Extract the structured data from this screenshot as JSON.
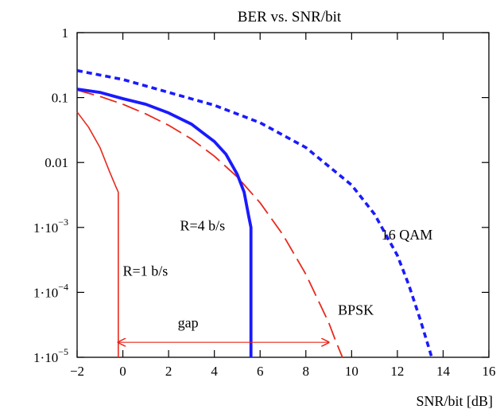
{
  "chart_data": {
    "type": "line",
    "title": "BER vs. SNR/bit",
    "xlabel": "SNR/bit [dB]",
    "ylabel": "",
    "xlim": [
      -2,
      16
    ],
    "ylim": [
      1e-05,
      1
    ],
    "y_scale": "log",
    "grid": false,
    "x_ticks": [
      "−2",
      "0",
      "2",
      "4",
      "6",
      "8",
      "10",
      "12",
      "14",
      "16"
    ],
    "y_ticks": [
      {
        "value": 1,
        "label": "1",
        "exp": ""
      },
      {
        "value": 0.1,
        "label": "0.1",
        "exp": ""
      },
      {
        "value": 0.01,
        "label": "0.01",
        "exp": ""
      },
      {
        "value": 0.001,
        "label": "1·10",
        "exp": "−3"
      },
      {
        "value": 0.0001,
        "label": "1·10",
        "exp": "−4"
      },
      {
        "value": 1e-05,
        "label": "1·10",
        "exp": "−5"
      }
    ],
    "series": [
      {
        "name": "16 QAM",
        "color": "#1a1aff",
        "style": "dotted-thick",
        "x": [
          -2,
          0,
          2,
          4,
          6,
          8,
          10,
          11,
          12,
          12.5,
          13,
          13.5
        ],
        "y": [
          0.26,
          0.19,
          0.12,
          0.076,
          0.041,
          0.017,
          0.0045,
          0.0016,
          0.00037,
          0.00013,
          3.8e-05,
          1e-05
        ]
      },
      {
        "name": "BPSK",
        "color": "#e8291c",
        "style": "dashed",
        "x": [
          -2,
          -1,
          0,
          1,
          2,
          3,
          4,
          5,
          6,
          7,
          8,
          9,
          9.3,
          9.6
        ],
        "y": [
          0.13,
          0.104,
          0.079,
          0.056,
          0.0375,
          0.023,
          0.0125,
          0.006,
          0.0024,
          0.00077,
          0.00019,
          3.4e-05,
          1.8e-05,
          1e-05
        ]
      },
      {
        "name": "R=4 b/s",
        "color": "#1a1aff",
        "style": "solid-thick",
        "x": [
          -2,
          -1,
          0,
          1,
          2,
          3,
          4,
          4.5,
          5,
          5.3,
          5.5,
          5.6,
          5.6
        ],
        "y": [
          0.135,
          0.12,
          0.096,
          0.079,
          0.058,
          0.039,
          0.021,
          0.0135,
          0.0066,
          0.0035,
          0.0015,
          0.001,
          1e-05
        ]
      },
      {
        "name": "R=1 b/s",
        "color": "#e8291c",
        "style": "solid",
        "x": [
          -2,
          -1.5,
          -1,
          -0.6,
          -0.3,
          -0.2,
          -0.2,
          -0.2
        ],
        "y": [
          0.06,
          0.035,
          0.017,
          0.0075,
          0.0042,
          0.0035,
          0.0035,
          1e-05
        ]
      }
    ],
    "annotations": [
      {
        "text": "16 QAM",
        "x": 11.3,
        "y": 0.00065
      },
      {
        "text": "R=4 b/s",
        "x": 2.5,
        "y": 0.0009
      },
      {
        "text": "R=1 b/s",
        "x": 0.0,
        "y": 0.00018
      },
      {
        "text": "BPSK",
        "x": 9.4,
        "y": 4.5e-05
      },
      {
        "text": "gap",
        "x": 2.4,
        "y": 2.9e-05
      }
    ],
    "gap_arrow": {
      "x_start": -0.2,
      "x_end": 9.0,
      "y": 1.7e-05,
      "color": "#e8291c"
    }
  }
}
